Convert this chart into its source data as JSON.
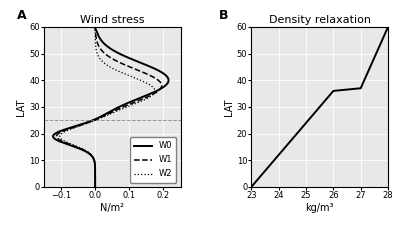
{
  "title_A": "Wind stress",
  "title_B": "Density relaxation",
  "xlabel_A": "N/m²",
  "xlabel_B": "kg/m³",
  "ylabel": "LAT",
  "label_A": "A",
  "label_B": "B",
  "lat_range": [
    0,
    60
  ],
  "lat_ticks": [
    0,
    10,
    20,
    30,
    40,
    50,
    60
  ],
  "wind_xlim": [
    -0.15,
    0.25
  ],
  "wind_xticks": [
    -0.1,
    0.0,
    0.1,
    0.2
  ],
  "density_xlim": [
    23,
    28
  ],
  "density_xticks": [
    23,
    24,
    25,
    26,
    27,
    28
  ],
  "dashed_lat": 25,
  "legend_labels": [
    "W0",
    "W1",
    "W2"
  ],
  "background_color": "#e8e8e8",
  "line_color": "black",
  "density_lats": [
    0,
    36,
    36,
    37,
    60
  ],
  "density_dens": [
    23,
    26,
    26,
    27,
    28
  ]
}
